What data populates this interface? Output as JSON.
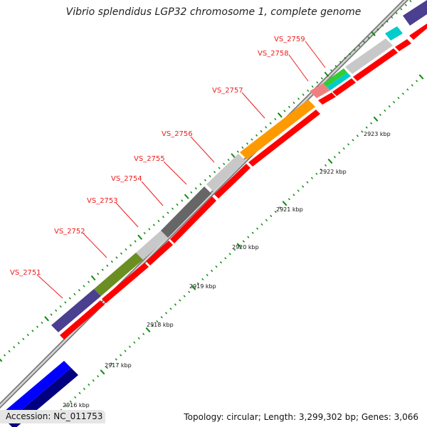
{
  "title": "Vibrio splendidus LGP32 chromosome 1, complete genome",
  "accession_text": "Accession: NC_011753",
  "topology_text": "Topology: circular; Length: 3,299,302 bp; Genes: 3,066",
  "gene_labels": [
    "VS_2751",
    "VS_2752",
    "VS_2753",
    "VS_2754",
    "VS_2755",
    "VS_2756",
    "VS_2757",
    "VS_2758",
    "VS_2759"
  ],
  "kbp_labels": [
    "2916 kbp",
    "2917 kbp",
    "2918 kbp",
    "2919 kbp",
    "2920 kbp",
    "2921 kbp",
    "2922 kbp",
    "2923 kbp"
  ],
  "colors": {
    "cds_arrow": "#ff0000",
    "backbone": "#9a9a9a",
    "tick": "#118811",
    "label": "#ee1c1c",
    "gene_colors": [
      "#4b3f8f",
      "#6b8e23",
      "#c8c8c8",
      "#666666",
      "#c8c8c8",
      "#ff9900",
      "#f08080",
      "#33cc33",
      "#c8c8c8",
      "#00cccc",
      "#0000ff",
      "#000080"
    ]
  }
}
